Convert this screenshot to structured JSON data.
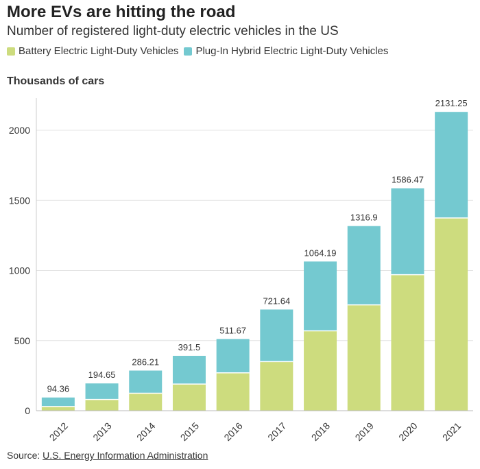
{
  "chart_data": {
    "type": "bar",
    "stacked": true,
    "title": "More EVs are hitting the road",
    "subtitle": "Number of registered light-duty electric vehicles in the US",
    "ylabel": "Thousands of cars",
    "xlabel": "",
    "ylim": [
      0,
      2230
    ],
    "yticks": [
      0,
      500,
      1000,
      1500,
      2000
    ],
    "grid": true,
    "legend_position": "top-left",
    "categories": [
      "2012",
      "2013",
      "2014",
      "2015",
      "2016",
      "2017",
      "2018",
      "2019",
      "2020",
      "2021"
    ],
    "series": [
      {
        "name": "Battery Electric Light-Duty Vehicles",
        "color": "#cddc7e",
        "values": [
          30,
          80,
          125,
          190,
          270,
          350,
          570,
          755,
          970,
          1375
        ]
      },
      {
        "name": "Plug-In Hybrid Electric Light-Duty Vehicles",
        "color": "#74c9d0",
        "values": [
          64.36,
          114.65,
          161.21,
          201.5,
          241.67,
          371.64,
          494.19,
          561.9,
          616.47,
          756.25
        ]
      }
    ],
    "totals": [
      "94.36",
      "194.65",
      "286.21",
      "391.5",
      "511.67",
      "721.64",
      "1064.19",
      "1316.9",
      "1586.47",
      "2131.25"
    ]
  },
  "source": {
    "prefix": "Source: ",
    "link_text": "U.S. Energy Information Administration"
  }
}
